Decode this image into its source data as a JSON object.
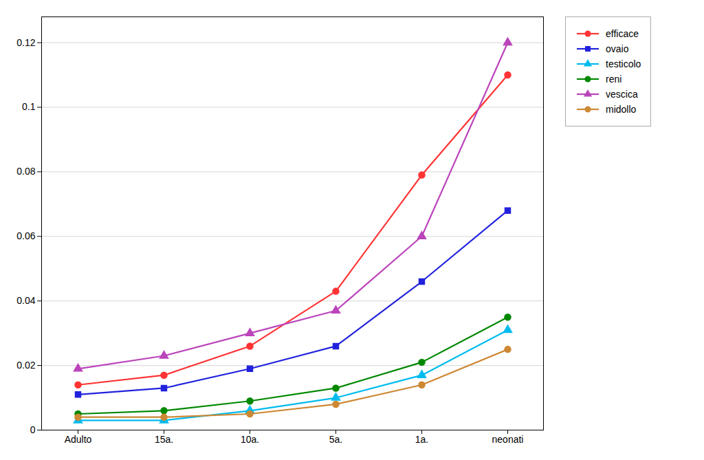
{
  "chart_data": {
    "type": "line",
    "categories": [
      "Adulto",
      "15a.",
      "10a.",
      "5a.",
      "1a.",
      "neonati"
    ],
    "series": [
      {
        "name": "efficace",
        "color": "#ff3333",
        "marker": "circle",
        "values": [
          0.014,
          0.017,
          0.026,
          0.043,
          0.079,
          0.11
        ]
      },
      {
        "name": "ovaio",
        "color": "#2222dd",
        "marker": "square",
        "values": [
          0.011,
          0.013,
          0.019,
          0.026,
          0.046,
          0.068
        ]
      },
      {
        "name": "testicolo",
        "color": "#00bbee",
        "marker": "triangle",
        "values": [
          0.003,
          0.003,
          0.006,
          0.01,
          0.017,
          0.031
        ]
      },
      {
        "name": "reni",
        "color": "#008800",
        "marker": "circle",
        "values": [
          0.005,
          0.006,
          0.009,
          0.013,
          0.021,
          0.035
        ]
      },
      {
        "name": "vescica",
        "color": "#bb44bb",
        "marker": "triangle",
        "values": [
          0.019,
          0.023,
          0.03,
          0.037,
          0.06,
          0.12
        ]
      },
      {
        "name": "midollo",
        "color": "#cc8833",
        "marker": "circle",
        "values": [
          0.004,
          0.004,
          0.005,
          0.008,
          0.014,
          0.025
        ]
      }
    ],
    "ylim": [
      0,
      0.128
    ],
    "yticks": [
      0,
      0.02,
      0.04,
      0.06,
      0.08,
      0.1,
      0.12
    ],
    "grid": true,
    "legend": "right"
  }
}
